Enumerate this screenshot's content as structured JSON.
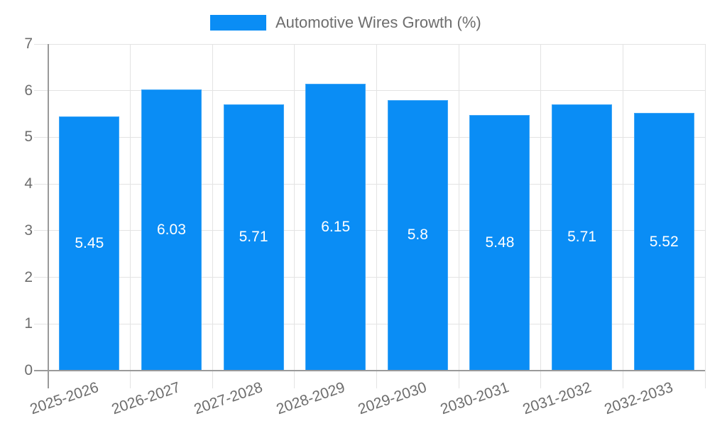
{
  "chart_data": {
    "type": "bar",
    "title": "",
    "legend": {
      "label": "Automotive Wires Growth (%)",
      "position": "top"
    },
    "categories": [
      "2025-2026",
      "2026-2027",
      "2027-2028",
      "2028-2029",
      "2029-2030",
      "2030-2031",
      "2031-2032",
      "2032-2033"
    ],
    "values": [
      5.45,
      6.03,
      5.71,
      6.15,
      5.8,
      5.48,
      5.71,
      5.52
    ],
    "value_labels": [
      "5.45",
      "6.03",
      "5.71",
      "6.15",
      "5.8",
      "5.48",
      "5.71",
      "5.52"
    ],
    "xlabel": "",
    "ylabel": "",
    "ylim": [
      0,
      7
    ],
    "yticks": [
      0,
      1,
      2,
      3,
      4,
      5,
      6,
      7
    ],
    "grid": true,
    "colors": {
      "bar": "#0a8df5",
      "bar_label_text": "#ffffff",
      "axis_text": "#6d6d6d",
      "gridline": "#e3e3e3",
      "axis_line": "#9a9a9a",
      "background": "#ffffff"
    }
  }
}
